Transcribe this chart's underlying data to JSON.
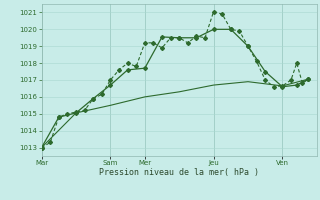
{
  "background_color": "#c8ece8",
  "grid_color": "#a8d8d0",
  "line_color": "#2d6a2d",
  "xlabel": "Pression niveau de la mer( hPa )",
  "ylim": [
    1012.5,
    1021.5
  ],
  "yticks": [
    1013,
    1014,
    1015,
    1016,
    1017,
    1018,
    1019,
    1020,
    1021
  ],
  "day_labels": [
    "Mar",
    "Sam",
    "Mer",
    "Jeu",
    "Ven"
  ],
  "day_x": [
    0,
    96,
    144,
    240,
    336
  ],
  "xmax": 384,
  "series1_dashed": [
    [
      0,
      1013.0
    ],
    [
      12,
      1013.3
    ],
    [
      24,
      1014.8
    ],
    [
      36,
      1015.0
    ],
    [
      48,
      1015.1
    ],
    [
      60,
      1015.2
    ],
    [
      72,
      1015.9
    ],
    [
      84,
      1016.15
    ],
    [
      96,
      1017.0
    ],
    [
      108,
      1017.6
    ],
    [
      120,
      1018.0
    ],
    [
      132,
      1017.8
    ],
    [
      144,
      1019.2
    ],
    [
      156,
      1019.2
    ],
    [
      168,
      1018.9
    ],
    [
      180,
      1019.5
    ],
    [
      192,
      1019.5
    ],
    [
      204,
      1019.2
    ],
    [
      216,
      1019.6
    ],
    [
      228,
      1019.5
    ],
    [
      240,
      1021.05
    ],
    [
      252,
      1020.9
    ],
    [
      264,
      1020.0
    ],
    [
      276,
      1019.9
    ],
    [
      288,
      1019.0
    ],
    [
      300,
      1018.1
    ],
    [
      312,
      1017.0
    ],
    [
      324,
      1016.6
    ],
    [
      336,
      1016.65
    ],
    [
      348,
      1017.0
    ],
    [
      356,
      1018.0
    ],
    [
      364,
      1016.8
    ],
    [
      372,
      1017.05
    ]
  ],
  "series2_solid": [
    [
      0,
      1013.0
    ],
    [
      24,
      1014.8
    ],
    [
      48,
      1015.05
    ],
    [
      72,
      1015.9
    ],
    [
      96,
      1016.7
    ],
    [
      120,
      1017.6
    ],
    [
      144,
      1017.7
    ],
    [
      168,
      1019.55
    ],
    [
      192,
      1019.5
    ],
    [
      216,
      1019.5
    ],
    [
      240,
      1020.0
    ],
    [
      264,
      1020.0
    ],
    [
      288,
      1019.0
    ],
    [
      312,
      1017.5
    ],
    [
      336,
      1016.6
    ],
    [
      356,
      1016.7
    ],
    [
      372,
      1017.05
    ]
  ],
  "series3_plain": [
    [
      0,
      1013.0
    ],
    [
      48,
      1015.05
    ],
    [
      96,
      1015.5
    ],
    [
      144,
      1016.0
    ],
    [
      192,
      1016.3
    ],
    [
      240,
      1016.7
    ],
    [
      288,
      1016.9
    ],
    [
      336,
      1016.65
    ],
    [
      372,
      1017.05
    ]
  ]
}
